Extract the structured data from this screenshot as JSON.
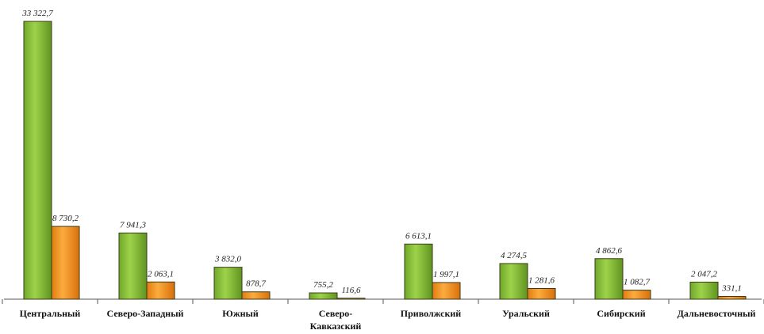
{
  "chart_data": {
    "type": "bar",
    "categories": [
      "Центральный",
      "Северо-Западный",
      "Южный",
      "Северо-\nКавказский",
      "Приволжский",
      "Уральский",
      "Сибирский",
      "Дальневосточный"
    ],
    "series": [
      {
        "color": "#8cc63e",
        "values": [
          33322.7,
          7941.3,
          3832.0,
          755.2,
          6613.1,
          4274.5,
          4862.6,
          2047.2
        ],
        "value_labels": [
          "33 322,7",
          "7 941,3",
          "3 832,0",
          "755,2",
          "6 613,1",
          "4 274,5",
          "4 862,6",
          "2 047,2"
        ]
      },
      {
        "color": "#f7961e",
        "values": [
          8730.2,
          2063.1,
          878.7,
          116.6,
          1997.1,
          1281.6,
          1082.7,
          331.1
        ],
        "value_labels": [
          "8 730,2",
          "2 063,1",
          "878,7",
          "116,6",
          "1 997,1",
          "1 281,6",
          "1 082,7",
          "331,1"
        ]
      }
    ]
  }
}
